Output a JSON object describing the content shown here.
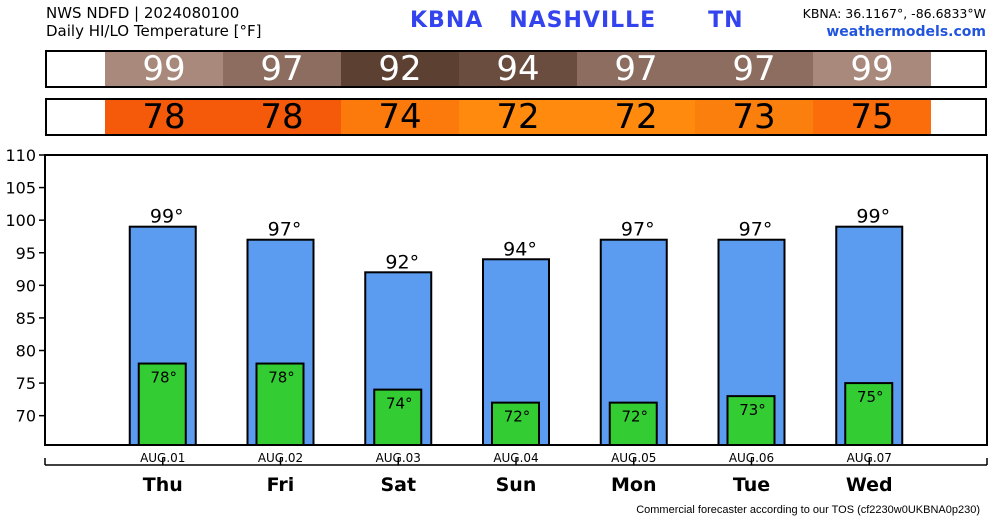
{
  "header": {
    "line1": "NWS NDFD | 2024080100",
    "line2": "Daily HI/LO Temperature [°F]",
    "station": "KBNA   NASHVILLE      TN",
    "coords": "KBNA: 36.1167°, -86.6833°W",
    "site": "weathermodels.com"
  },
  "hi_strip": {
    "values": [
      "99",
      "97",
      "92",
      "94",
      "97",
      "97",
      "99"
    ],
    "colors": [
      "#a8897c",
      "#8c6d60",
      "#5c4032",
      "#6a4d3f",
      "#8c6d60",
      "#8c6d60",
      "#a8897c"
    ],
    "text_color": "#ffffff"
  },
  "lo_strip": {
    "values": [
      "78",
      "78",
      "74",
      "72",
      "72",
      "73",
      "75"
    ],
    "colors": [
      "#f45a09",
      "#f45a09",
      "#fb7a0b",
      "#ff8a0d",
      "#ff8a0d",
      "#fb7f0c",
      "#fb6d0a"
    ],
    "text_color": "#000000"
  },
  "chart_data": {
    "type": "bar",
    "categories": [
      "Thu",
      "Fri",
      "Sat",
      "Sun",
      "Mon",
      "Tue",
      "Wed"
    ],
    "dates": [
      "AUG.01",
      "AUG.02",
      "AUG.03",
      "AUG.04",
      "AUG.05",
      "AUG.06",
      "AUG.07"
    ],
    "series": [
      {
        "values": [
          99,
          97,
          92,
          94,
          97,
          97,
          99
        ],
        "labels": [
          "99°",
          "97°",
          "92°",
          "94°",
          "97°",
          "97°",
          "99°"
        ],
        "color": "#5b9bf0"
      },
      {
        "values": [
          78,
          78,
          74,
          72,
          72,
          73,
          75
        ],
        "labels": [
          "78°",
          "78°",
          "74°",
          "72°",
          "72°",
          "73°",
          "75°"
        ],
        "color": "#33cc33"
      }
    ],
    "ylim": [
      65.5,
      110
    ],
    "yticks": [
      "110",
      "105",
      "100",
      "95",
      "90",
      "85",
      "80",
      "75",
      "70"
    ],
    "grid": false
  },
  "footer": "Commercial forecaster according to our TOS (cf2230w0UKBNA0p230)"
}
